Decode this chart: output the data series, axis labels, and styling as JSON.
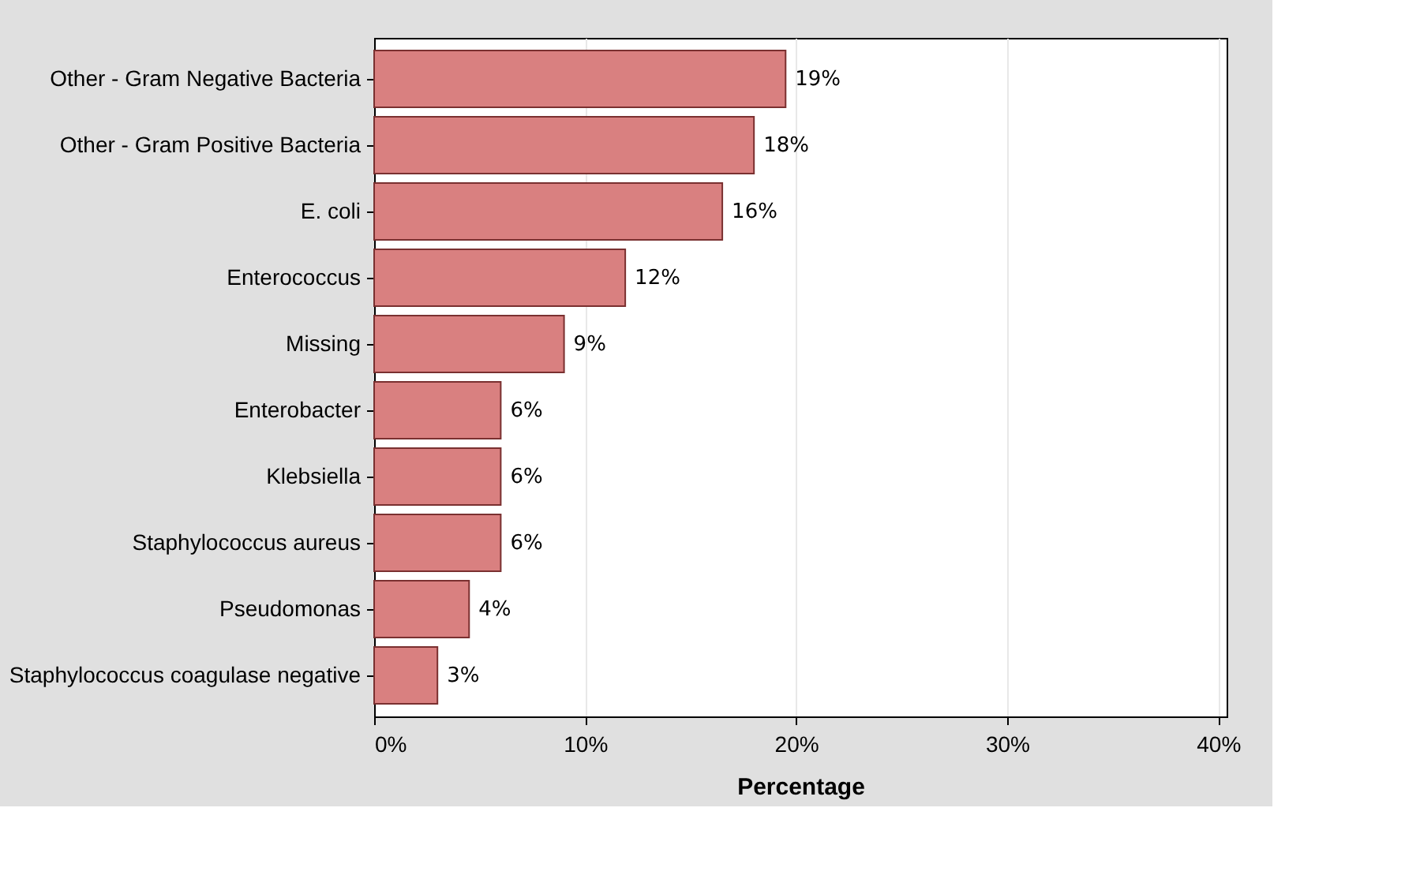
{
  "chart_data": {
    "type": "bar",
    "orientation": "horizontal",
    "xlabel": "Percentage",
    "categories": [
      "Other - Gram Negative Bacteria",
      "Other - Gram Positive Bacteria",
      "E. coli",
      "Enterococcus",
      "Missing",
      "Enterobacter",
      "Klebsiella",
      "Staphylococcus aureus",
      "Pseudomonas",
      "Staphylococcus coagulase negative"
    ],
    "values": [
      19.5,
      18.0,
      16.5,
      11.9,
      9.0,
      6.0,
      6.0,
      6.0,
      4.5,
      3.0
    ],
    "value_labels": [
      "19%",
      "18%",
      "16%",
      "12%",
      "9%",
      "6%",
      "6%",
      "6%",
      "4%",
      "3%"
    ],
    "color": "#d98080",
    "xlim": [
      0,
      40.4
    ],
    "xticks": [
      {
        "value": 0,
        "label": "0%"
      },
      {
        "value": 10,
        "label": "10%"
      },
      {
        "value": 20,
        "label": "20%"
      },
      {
        "value": 30,
        "label": "30%"
      },
      {
        "value": 40,
        "label": "40%"
      }
    ],
    "grid": "x"
  }
}
